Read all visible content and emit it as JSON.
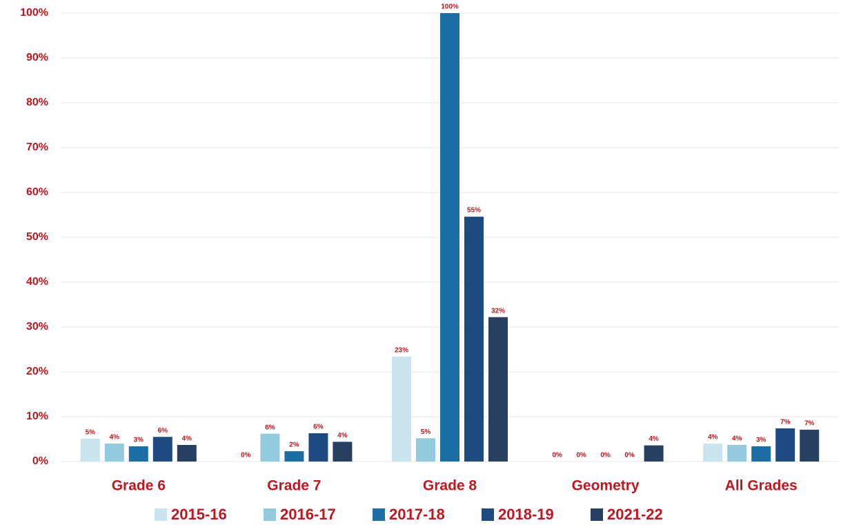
{
  "chart_data": {
    "type": "bar",
    "categories": [
      "Grade 6",
      "Grade 7",
      "Grade 8",
      "Geometry",
      "All Grades"
    ],
    "series": [
      {
        "name": "2015-16",
        "color": "#c9e4ee",
        "values": [
          5.1,
          0,
          23.4,
          0,
          4.0
        ],
        "value_labels": [
          "5%",
          "0%",
          "23%",
          "0%",
          "4%"
        ]
      },
      {
        "name": "2016-17",
        "color": "#92cbdd",
        "values": [
          4.0,
          6.2,
          5.2,
          0,
          3.7
        ],
        "value_labels": [
          "4%",
          "6%",
          "5%",
          "0%",
          "4%"
        ]
      },
      {
        "name": "2017-18",
        "color": "#1b6fa4",
        "values": [
          3.4,
          2.3,
          100,
          0,
          3.4
        ],
        "value_labels": [
          "3%",
          "2%",
          "100%",
          "0%",
          "3%"
        ]
      },
      {
        "name": "2018-19",
        "color": "#1d4a80",
        "values": [
          5.5,
          6.3,
          54.6,
          0,
          7.4
        ],
        "value_labels": [
          "6%",
          "6%",
          "55%",
          "0%",
          "7%"
        ]
      },
      {
        "name": "2021-22",
        "color": "#273f61",
        "values": [
          3.7,
          4.4,
          32.2,
          3.6,
          7.1
        ],
        "value_labels": [
          "4%",
          "4%",
          "32%",
          "4%",
          "7%"
        ]
      }
    ],
    "ylim": [
      0,
      100
    ],
    "yticks": [
      {
        "value": 0,
        "label": "0%"
      },
      {
        "value": 10,
        "label": "10%"
      },
      {
        "value": 20,
        "label": "20%"
      },
      {
        "value": 30,
        "label": "30%"
      },
      {
        "value": 40,
        "label": "40%"
      },
      {
        "value": 50,
        "label": "50%"
      },
      {
        "value": 60,
        "label": "60%"
      },
      {
        "value": 70,
        "label": "70%"
      },
      {
        "value": 80,
        "label": "80%"
      },
      {
        "value": 90,
        "label": "90%"
      },
      {
        "value": 100,
        "label": "100%"
      }
    ],
    "grid": true,
    "legend": "bottom"
  }
}
